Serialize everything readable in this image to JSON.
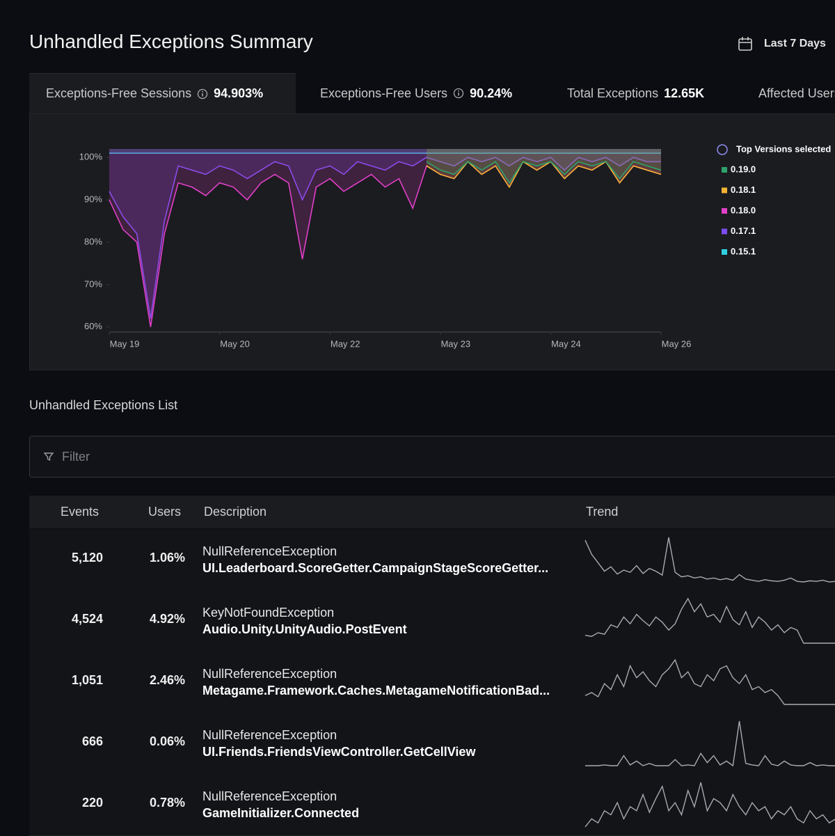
{
  "header": {
    "title": "Unhandled Exceptions Summary",
    "date_range": "Last 7 Days"
  },
  "tabs": [
    {
      "label": "Exceptions-Free Sessions",
      "value": "94.903%"
    },
    {
      "label": "Exceptions-Free Users",
      "value": "90.24%"
    },
    {
      "label": "Total Exceptions",
      "value": "12.65K"
    },
    {
      "label": "Affected Users",
      "value": ""
    }
  ],
  "chart_data": {
    "type": "line",
    "x": [
      0,
      1,
      2,
      3,
      4,
      5,
      6,
      7,
      8,
      9,
      10,
      11,
      12,
      13,
      14,
      15,
      16,
      17,
      18,
      19,
      20,
      21,
      22,
      23,
      24,
      25,
      26,
      27,
      28,
      29,
      30,
      31,
      32,
      33,
      34,
      35,
      36,
      37,
      38,
      39,
      40
    ],
    "xlim": [
      0,
      40
    ],
    "xticks": [
      {
        "value": 0,
        "label": "May 19"
      },
      {
        "value": 8,
        "label": "May 20"
      },
      {
        "value": 16,
        "label": "May 22"
      },
      {
        "value": 24,
        "label": "May 23"
      },
      {
        "value": 32,
        "label": "May 24"
      },
      {
        "value": 40,
        "label": "May 26"
      }
    ],
    "ylim": [
      58.8,
      102
    ],
    "yticks": [
      {
        "value": 60,
        "label": "60%"
      },
      {
        "value": 70,
        "label": "70%"
      },
      {
        "value": 80,
        "label": "80%"
      },
      {
        "value": 90,
        "label": "90%"
      },
      {
        "value": 100,
        "label": "100%"
      }
    ],
    "legend_title": "Top Versions selected",
    "series": [
      {
        "name": "0.19.0",
        "color": "#2fa36b",
        "values": [
          null,
          null,
          null,
          null,
          null,
          null,
          null,
          null,
          null,
          null,
          null,
          null,
          null,
          null,
          null,
          null,
          null,
          null,
          null,
          null,
          null,
          null,
          null,
          99,
          97,
          96,
          99,
          97,
          99,
          94,
          99,
          98,
          99,
          96,
          99,
          98,
          99,
          95,
          99,
          98,
          97
        ]
      },
      {
        "name": "0.18.1",
        "color": "#f2b233",
        "values": [
          null,
          null,
          null,
          null,
          null,
          null,
          null,
          null,
          null,
          null,
          null,
          null,
          null,
          null,
          null,
          null,
          null,
          null,
          null,
          null,
          null,
          null,
          null,
          98,
          96,
          95,
          99,
          96,
          98,
          93,
          99,
          97,
          99,
          95,
          98,
          97,
          99,
          94,
          98,
          97,
          96
        ]
      },
      {
        "name": "0.18.0",
        "color": "#e040c8",
        "values": [
          90,
          83,
          80,
          60,
          82,
          94,
          93,
          91,
          94,
          93,
          90,
          94,
          96,
          94,
          76,
          93,
          95,
          92,
          94,
          96,
          93,
          95,
          88,
          98,
          96,
          95,
          99,
          96,
          98,
          93,
          99,
          97,
          99,
          95,
          98,
          97,
          99,
          94,
          98,
          97,
          96
        ]
      },
      {
        "name": "0.17.1",
        "color": "#7b4df0",
        "values": [
          92,
          86,
          82,
          62,
          85,
          98,
          97,
          96,
          98,
          97,
          95,
          97,
          99,
          98,
          90,
          97,
          98,
          96,
          99,
          98,
          97,
          99,
          98,
          100,
          99,
          98,
          100,
          99,
          100,
          98,
          100,
          99,
          100,
          97,
          100,
          99,
          100,
          98,
          100,
          99,
          99
        ]
      },
      {
        "name": "0.15.1",
        "color": "#2fd0e0",
        "values": [
          101,
          101,
          101,
          101,
          101,
          101,
          101,
          101,
          101,
          101,
          101,
          101,
          101,
          101,
          101,
          101,
          101,
          101,
          101,
          101,
          101,
          101,
          101,
          101,
          101,
          101,
          101,
          101,
          101,
          101,
          101,
          101,
          101,
          101,
          101,
          101,
          101,
          101,
          101,
          101,
          101
        ]
      }
    ]
  },
  "list": {
    "title": "Unhandled Exceptions List",
    "filter_placeholder": "Filter",
    "columns": [
      "Events",
      "Users",
      "Description",
      "Trend"
    ],
    "rows": [
      {
        "events": "5,120",
        "users": "1.06%",
        "exception": "NullReferenceException",
        "detail": "UI.Leaderboard.ScoreGetter.CampaignStageScoreGetter...",
        "trend": [
          95,
          70,
          55,
          40,
          48,
          35,
          42,
          38,
          50,
          36,
          45,
          40,
          33,
          100,
          38,
          30,
          32,
          28,
          30,
          26,
          28,
          25,
          27,
          24,
          34,
          26,
          24,
          22,
          25,
          23,
          22,
          24,
          28,
          22,
          21,
          23,
          22,
          24,
          21,
          22
        ]
      },
      {
        "events": "4,524",
        "users": "4.92%",
        "exception": "KeyNotFoundException",
        "detail": "Audio.Unity.UnityAudio.PostEvent",
        "trend": [
          20,
          18,
          25,
          22,
          40,
          35,
          55,
          42,
          60,
          48,
          38,
          55,
          45,
          30,
          42,
          70,
          90,
          65,
          80,
          55,
          60,
          45,
          75,
          50,
          40,
          65,
          35,
          55,
          45,
          30,
          40,
          25,
          35,
          30,
          5,
          5,
          5,
          5,
          5,
          5
        ]
      },
      {
        "events": "1,051",
        "users": "2.46%",
        "exception": "NullReferenceException",
        "detail": "Metagame.Framework.Caches.MetagameNotificationBad...",
        "trend": [
          20,
          25,
          18,
          40,
          30,
          55,
          35,
          70,
          50,
          60,
          45,
          35,
          55,
          65,
          80,
          50,
          60,
          40,
          35,
          55,
          45,
          65,
          70,
          50,
          40,
          55,
          30,
          35,
          25,
          30,
          20,
          5,
          5,
          5,
          5,
          5,
          5,
          5,
          5,
          5
        ]
      },
      {
        "events": "666",
        "users": "0.06%",
        "exception": "NullReferenceException",
        "detail": "UI.Friends.FriendsViewController.GetCellView",
        "trend": [
          2,
          2,
          2,
          3,
          2,
          2,
          15,
          3,
          8,
          2,
          5,
          2,
          2,
          2,
          10,
          2,
          3,
          2,
          18,
          6,
          15,
          3,
          8,
          2,
          60,
          5,
          3,
          2,
          15,
          4,
          2,
          8,
          3,
          2,
          2,
          6,
          2,
          3,
          2,
          2
        ]
      },
      {
        "events": "220",
        "users": "0.78%",
        "exception": "NullReferenceException",
        "detail": "GameInitializer.Connected",
        "trend": [
          10,
          20,
          15,
          30,
          25,
          40,
          20,
          35,
          30,
          50,
          28,
          45,
          60,
          30,
          40,
          25,
          55,
          35,
          65,
          30,
          45,
          40,
          30,
          50,
          35,
          25,
          40,
          30,
          35,
          20,
          30,
          25,
          35,
          20,
          15,
          30,
          20,
          25,
          15,
          20
        ]
      }
    ]
  }
}
